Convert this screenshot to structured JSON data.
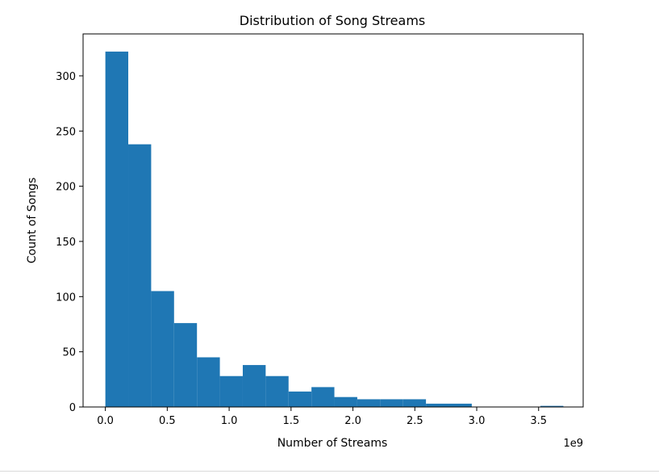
{
  "chart_data": {
    "type": "bar",
    "title": "Distribution of Song Streams",
    "xlabel": "Number of Streams",
    "ylabel": "Count of Songs",
    "x_offset_label": "1e9",
    "xlim": [
      -0.18,
      3.86
    ],
    "ylim": [
      0,
      338
    ],
    "x_ticks": [
      0.0,
      0.5,
      1.0,
      1.5,
      2.0,
      2.5,
      3.0,
      3.5
    ],
    "x_tick_labels": [
      "0.0",
      "0.5",
      "1.0",
      "1.5",
      "2.0",
      "2.5",
      "3.0",
      "3.5"
    ],
    "y_ticks": [
      0,
      50,
      100,
      150,
      200,
      250,
      300
    ],
    "y_tick_labels": [
      "0",
      "50",
      "100",
      "150",
      "200",
      "250",
      "300"
    ],
    "bins": {
      "edges": [
        0.0,
        0.185,
        0.37,
        0.555,
        0.74,
        0.925,
        1.11,
        1.295,
        1.48,
        1.665,
        1.85,
        2.035,
        2.22,
        2.405,
        2.59,
        2.775,
        2.96,
        3.145,
        3.33,
        3.515,
        3.7
      ],
      "counts": [
        322,
        238,
        105,
        76,
        45,
        28,
        38,
        28,
        14,
        18,
        9,
        7,
        7,
        7,
        3,
        3,
        0,
        0,
        0,
        1
      ]
    },
    "bar_color": "#1f77b4",
    "grid": false
  }
}
